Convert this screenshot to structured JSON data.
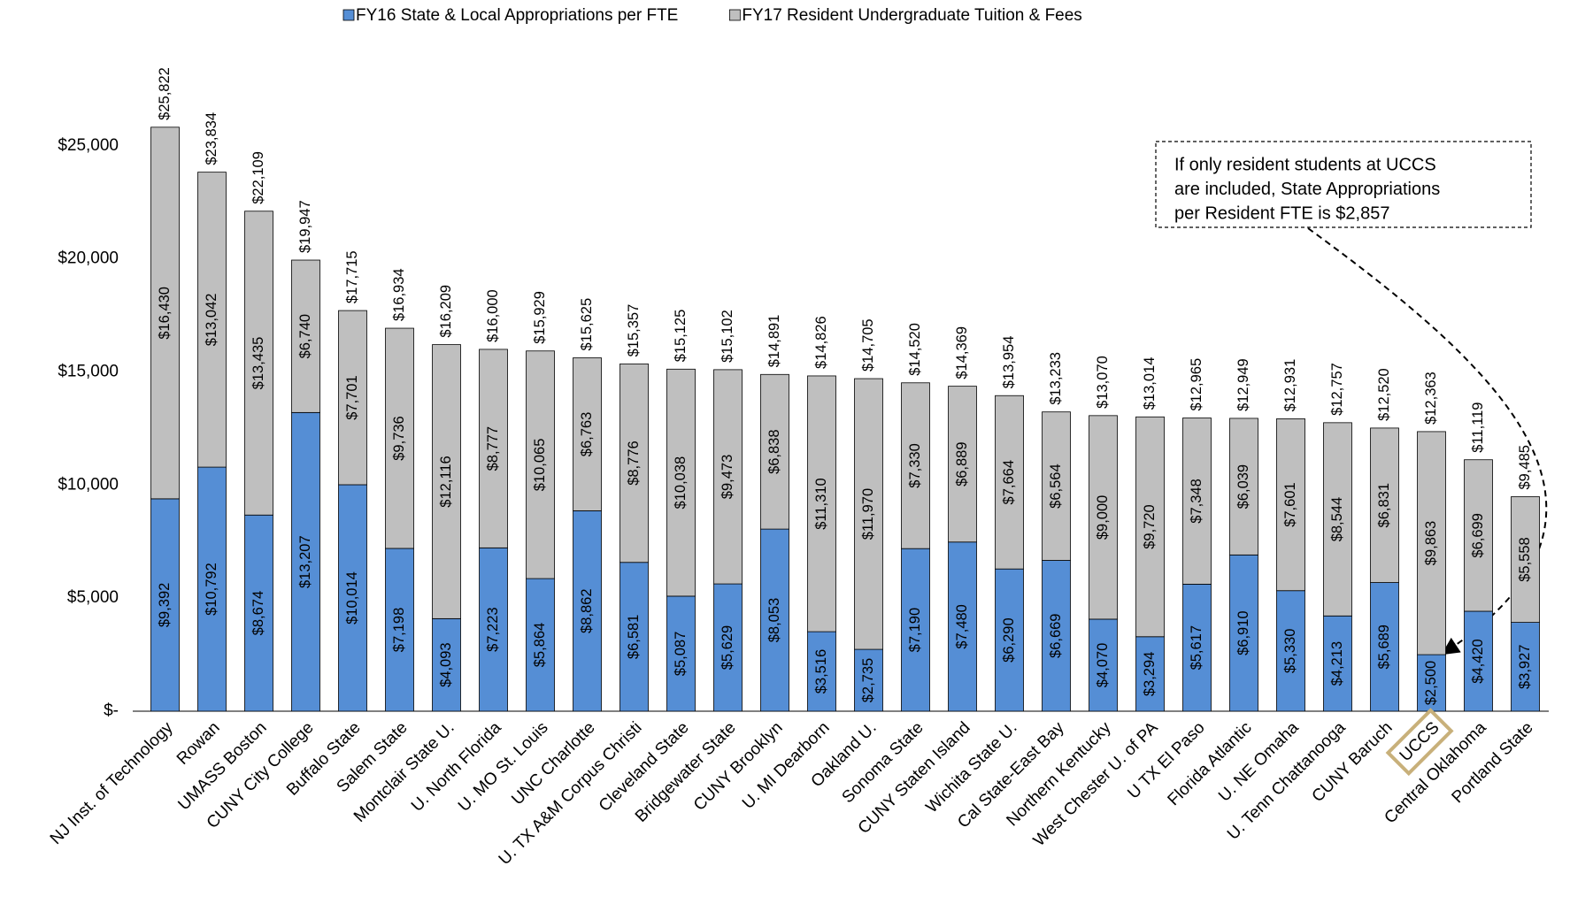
{
  "chart_data": {
    "type": "stacked_bar",
    "legend": "top",
    "grid": false,
    "annotation": [
      "If only resident students at UCCS",
      "are included, State Appropriations",
      "per Resident FTE is $2,857"
    ],
    "highlight": "UCCS",
    "highlight_color": "#c8b07a",
    "categories": [
      "NJ Inst. of Technology",
      "Rowan",
      "UMASS Boston",
      "CUNY City College",
      "Buffalo State",
      "Salem State",
      "Montclair State U.",
      "U. North Florida",
      "U. MO St. Louis",
      "UNC Charlotte",
      "U. TX A&M Corpus Christi",
      "Cleveland State",
      "Bridgewater State",
      "CUNY Brooklyn",
      "U. MI Dearborn",
      "Oakland U.",
      "Sonoma State",
      "CUNY Staten Island",
      "Wichita State U.",
      "Cal State-East Bay",
      "Northern Kentucky",
      "West Chester U. of PA",
      "U TX El Paso",
      "Florida Atlantic",
      "U. NE Omaha",
      "U. Tenn Chattanooga",
      "CUNY Baruch",
      "UCCS",
      "Central Oklahoma",
      "Portland State"
    ],
    "series": [
      {
        "name": "FY16 State & Local Appropriations per FTE",
        "color": "#558ed5",
        "values": [
          9392,
          10792,
          8674,
          13207,
          10014,
          7198,
          4093,
          7223,
          5864,
          8862,
          6581,
          5087,
          5629,
          8053,
          3516,
          2735,
          7190,
          7480,
          6290,
          6669,
          4070,
          3294,
          5617,
          6910,
          5330,
          4213,
          5689,
          2500,
          4420,
          3927
        ],
        "value_labels": [
          "$9,392",
          "$10,792",
          "$8,674",
          "$13,207",
          "$10,014",
          "$7,198",
          "$4,093",
          "$7,223",
          "$5,864",
          "$8,862",
          "$6,581",
          "$5,087",
          "$5,629",
          "$8,053",
          "$3,516",
          "$2,735",
          "$7,190",
          "$7,480",
          "$6,290",
          "$6,669",
          "$4,070",
          "$3,294",
          "$5,617",
          "$6,910",
          "$5,330",
          "$4,213",
          "$5,689",
          "$2,500",
          "$4,420",
          "$3,927"
        ]
      },
      {
        "name": "FY17 Resident Undergraduate Tuition & Fees",
        "color": "#bfbfbf",
        "values": [
          16430,
          13042,
          13435,
          6740,
          7701,
          9736,
          12116,
          8777,
          10065,
          6763,
          8776,
          10038,
          9473,
          6838,
          11310,
          11970,
          7330,
          6889,
          7664,
          6564,
          9000,
          9720,
          7348,
          6039,
          7601,
          8544,
          6831,
          9863,
          6699,
          5558
        ],
        "value_labels": [
          "$16,430",
          "$13,042",
          "$13,435",
          "$6,740",
          "$7,701",
          "$9,736",
          "$12,116",
          "$8,777",
          "$10,065",
          "$6,763",
          "$8,776",
          "$10,038",
          "$9,473",
          "$6,838",
          "$11,310",
          "$11,970",
          "$7,330",
          "$6,889",
          "$7,664",
          "$6,564",
          "$9,000",
          "$9,720",
          "$7,348",
          "$6,039",
          "$7,601",
          "$8,544",
          "$6,831",
          "$9,863",
          "$6,699",
          "$5,558"
        ]
      }
    ],
    "totals": [
      25822,
      23834,
      22109,
      19947,
      17715,
      16934,
      16209,
      16000,
      15929,
      15625,
      15357,
      15125,
      15102,
      14891,
      14826,
      14705,
      14520,
      14369,
      13954,
      13233,
      13070,
      13014,
      12965,
      12949,
      12931,
      12757,
      12520,
      12363,
      11119,
      9485
    ],
    "total_labels": [
      "$25,822",
      "$23,834",
      "$22,109",
      "$19,947",
      "$17,715",
      "$16,934",
      "$16,209",
      "$16,000",
      "$15,929",
      "$15,625",
      "$15,357",
      "$15,125",
      "$15,102",
      "$14,891",
      "$14,826",
      "$14,705",
      "$14,520",
      "$14,369",
      "$13,954",
      "$13,233",
      "$13,070",
      "$13,014",
      "$12,965",
      "$12,949",
      "$12,931",
      "$12,757",
      "$12,520",
      "$12,363",
      "$11,119",
      "$9,485"
    ],
    "ylim": [
      0,
      30000
    ],
    "yticks": [
      {
        "value": 0,
        "label": "$-"
      },
      {
        "value": 5000,
        "label": "$5,000"
      },
      {
        "value": 10000,
        "label": "$10,000"
      },
      {
        "value": 15000,
        "label": "$15,000"
      },
      {
        "value": 20000,
        "label": "$20,000"
      },
      {
        "value": 25000,
        "label": "$25,000"
      }
    ]
  }
}
